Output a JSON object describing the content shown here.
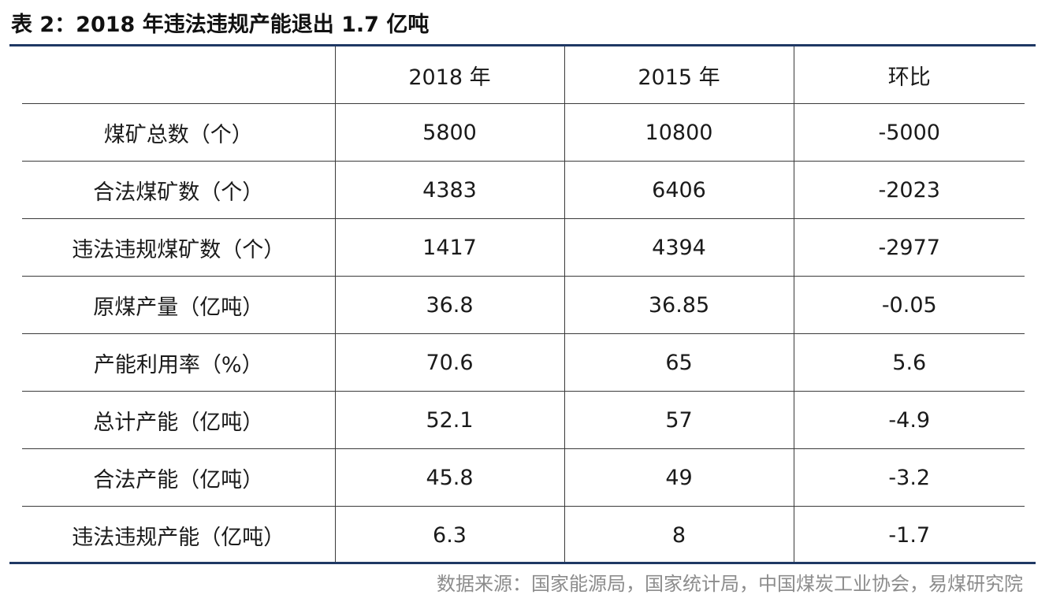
{
  "title": "表 2：2018 年违法违规产能退出 1.7 亿吨",
  "table": {
    "headers": [
      "",
      "2018 年",
      "2015 年",
      "环比"
    ],
    "rows": [
      [
        "煤矿总数（个）",
        "5800",
        "10800",
        "-5000"
      ],
      [
        "合法煤矿数（个）",
        "4383",
        "6406",
        "-2023"
      ],
      [
        "违法违规煤矿数（个）",
        "1417",
        "4394",
        "-2977"
      ],
      [
        "原煤产量（亿吨）",
        "36.8",
        "36.85",
        "-0.05"
      ],
      [
        "产能利用率（%）",
        "70.6",
        "65",
        "5.6"
      ],
      [
        "总计产能（亿吨）",
        "52.1",
        "57",
        "-4.9"
      ],
      [
        "合法产能（亿吨）",
        "45.8",
        "49",
        "-3.2"
      ],
      [
        "违法违规产能（亿吨）",
        "6.3",
        "8",
        "-1.7"
      ]
    ]
  },
  "source": "数据来源：国家能源局，国家统计局，中国煤炭工业协会，易煤研究院",
  "colors": {
    "rule": "#1f3864",
    "text": "#1a1a1a",
    "source_text": "#8c8c8c"
  }
}
